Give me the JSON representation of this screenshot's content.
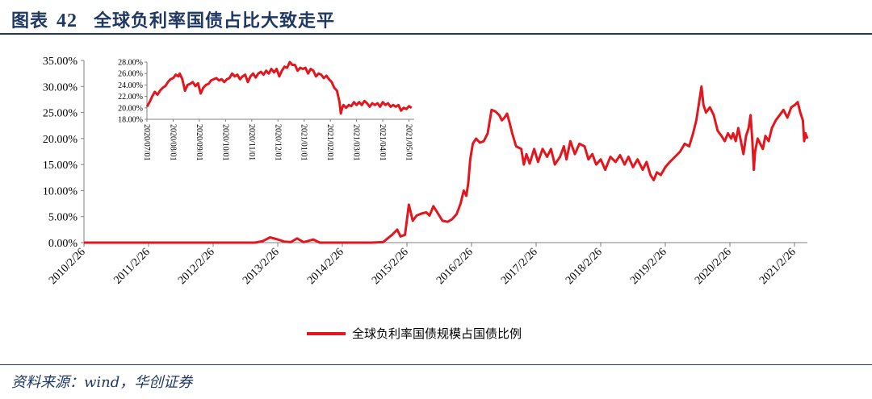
{
  "title": {
    "label": "图表",
    "number": "42",
    "text": "全球负利率国债占比大致走平"
  },
  "source": "资料来源：wind，华创证券",
  "colors": {
    "series": "#e3161e",
    "axis": "#808080",
    "title": "#1f3864"
  },
  "chart_data": [
    {
      "type": "line",
      "series": [
        {
          "name": "全球负利率国债规模占国债比例"
        }
      ],
      "legend_position": "bottom-center",
      "grid": false,
      "x_ticks": [
        "2010/2/26",
        "2011/2/26",
        "2012/2/26",
        "2013/2/26",
        "2014/2/26",
        "2015/2/26",
        "2016/2/26",
        "2017/2/26",
        "2018/2/26",
        "2019/2/26",
        "2020/2/26",
        "2021/2/26"
      ],
      "y_ticks": [
        "0.00%",
        "5.00%",
        "10.00%",
        "15.00%",
        "20.00%",
        "25.00%",
        "30.00%",
        "35.00%"
      ],
      "ylim": [
        0,
        35
      ],
      "xlim_years": [
        2010.15,
        2021.35
      ],
      "points": [
        [
          2010.15,
          0
        ],
        [
          2012.3,
          0
        ],
        [
          2012.8,
          0
        ],
        [
          2012.92,
          0.3
        ],
        [
          2013.03,
          1.0
        ],
        [
          2013.15,
          0.6
        ],
        [
          2013.25,
          0.2
        ],
        [
          2013.35,
          0.1
        ],
        [
          2013.45,
          0.8
        ],
        [
          2013.55,
          0.1
        ],
        [
          2013.7,
          0.6
        ],
        [
          2013.8,
          0.0
        ],
        [
          2014.6,
          0
        ],
        [
          2014.78,
          0.1
        ],
        [
          2014.92,
          1.5
        ],
        [
          2015.0,
          2.5
        ],
        [
          2015.05,
          1.2
        ],
        [
          2015.12,
          1.5
        ],
        [
          2015.18,
          7.3
        ],
        [
          2015.24,
          4.2
        ],
        [
          2015.3,
          5.2
        ],
        [
          2015.38,
          5.6
        ],
        [
          2015.45,
          5.8
        ],
        [
          2015.5,
          5.2
        ],
        [
          2015.56,
          7.0
        ],
        [
          2015.62,
          5.8
        ],
        [
          2015.7,
          4.2
        ],
        [
          2015.78,
          4.0
        ],
        [
          2015.85,
          4.5
        ],
        [
          2015.92,
          5.5
        ],
        [
          2015.98,
          7.5
        ],
        [
          2016.03,
          10.0
        ],
        [
          2016.07,
          9.0
        ],
        [
          2016.1,
          11.5
        ],
        [
          2016.13,
          16.0
        ],
        [
          2016.17,
          19.0
        ],
        [
          2016.22,
          20.0
        ],
        [
          2016.28,
          19.2
        ],
        [
          2016.34,
          19.5
        ],
        [
          2016.4,
          21.0
        ],
        [
          2016.46,
          25.5
        ],
        [
          2016.52,
          25.2
        ],
        [
          2016.58,
          24.5
        ],
        [
          2016.62,
          23.5
        ],
        [
          2016.66,
          24.0
        ],
        [
          2016.7,
          24.8
        ],
        [
          2016.74,
          23.0
        ],
        [
          2016.78,
          21.0
        ],
        [
          2016.84,
          18.5
        ],
        [
          2016.92,
          18.0
        ],
        [
          2016.96,
          15.0
        ],
        [
          2017.0,
          17.0
        ],
        [
          2017.05,
          15.2
        ],
        [
          2017.12,
          18.0
        ],
        [
          2017.18,
          15.5
        ],
        [
          2017.25,
          18.0
        ],
        [
          2017.32,
          16.5
        ],
        [
          2017.38,
          18.0
        ],
        [
          2017.44,
          15.0
        ],
        [
          2017.52,
          16.5
        ],
        [
          2017.58,
          18.5
        ],
        [
          2017.62,
          16.0
        ],
        [
          2017.68,
          19.5
        ],
        [
          2017.75,
          17.0
        ],
        [
          2017.82,
          19.0
        ],
        [
          2017.9,
          18.5
        ],
        [
          2017.96,
          16.0
        ],
        [
          2018.02,
          17.0
        ],
        [
          2018.08,
          15.0
        ],
        [
          2018.15,
          16.0
        ],
        [
          2018.22,
          14.0
        ],
        [
          2018.3,
          16.5
        ],
        [
          2018.38,
          15.5
        ],
        [
          2018.45,
          16.8
        ],
        [
          2018.52,
          15.0
        ],
        [
          2018.58,
          16.5
        ],
        [
          2018.65,
          14.5
        ],
        [
          2018.72,
          16.0
        ],
        [
          2018.8,
          14.0
        ],
        [
          2018.86,
          15.5
        ],
        [
          2018.92,
          13.0
        ],
        [
          2018.97,
          12.0
        ],
        [
          2019.02,
          13.5
        ],
        [
          2019.08,
          13.0
        ],
        [
          2019.15,
          14.5
        ],
        [
          2019.22,
          15.5
        ],
        [
          2019.3,
          16.5
        ],
        [
          2019.38,
          17.5
        ],
        [
          2019.45,
          19.0
        ],
        [
          2019.52,
          18.5
        ],
        [
          2019.58,
          21.0
        ],
        [
          2019.63,
          23.5
        ],
        [
          2019.68,
          27.5
        ],
        [
          2019.71,
          30.0
        ],
        [
          2019.74,
          26.5
        ],
        [
          2019.78,
          25.0
        ],
        [
          2019.84,
          26.0
        ],
        [
          2019.9,
          24.5
        ],
        [
          2019.96,
          21.5
        ],
        [
          2020.02,
          20.5
        ],
        [
          2020.07,
          19.5
        ],
        [
          2020.12,
          21.0
        ],
        [
          2020.17,
          20.0
        ],
        [
          2020.2,
          21.0
        ],
        [
          2020.24,
          19.5
        ],
        [
          2020.28,
          22.0
        ],
        [
          2020.32,
          19.5
        ],
        [
          2020.36,
          17.0
        ],
        [
          2020.4,
          20.5
        ],
        [
          2020.44,
          22.0
        ],
        [
          2020.47,
          24.5
        ],
        [
          2020.5,
          19.0
        ],
        [
          2020.52,
          14.0
        ],
        [
          2020.54,
          17.5
        ],
        [
          2020.58,
          20.0
        ],
        [
          2020.62,
          19.0
        ],
        [
          2020.66,
          18.0
        ],
        [
          2020.7,
          20.5
        ],
        [
          2020.75,
          19.5
        ],
        [
          2020.8,
          22.0
        ],
        [
          2020.86,
          23.5
        ],
        [
          2020.92,
          24.5
        ],
        [
          2020.98,
          25.5
        ],
        [
          2021.04,
          24.0
        ],
        [
          2021.1,
          26.0
        ],
        [
          2021.16,
          26.5
        ],
        [
          2021.2,
          27.0
        ],
        [
          2021.24,
          25.0
        ],
        [
          2021.28,
          23.5
        ],
        [
          2021.3,
          19.5
        ],
        [
          2021.32,
          21.0
        ],
        [
          2021.35,
          20.0
        ]
      ]
    },
    {
      "type": "line",
      "inset": true,
      "x_ticks": [
        "2020/07/01",
        "2020/08/01",
        "2020/09/01",
        "2020/10/01",
        "2020/11/01",
        "2020/12/01",
        "2021/01/01",
        "2021/02/01",
        "2021/03/01",
        "2021/04/01",
        "2021/05/01"
      ],
      "y_ticks": [
        "18.00%",
        "20.00%",
        "22.00%",
        "24.00%",
        "26.00%",
        "28.00%"
      ],
      "ylim": [
        18,
        28
      ],
      "xlim_months": [
        0,
        10.2
      ],
      "points": [
        [
          0.0,
          20.2
        ],
        [
          0.1,
          21.0
        ],
        [
          0.2,
          22.0
        ],
        [
          0.3,
          22.8
        ],
        [
          0.4,
          22.3
        ],
        [
          0.5,
          23.0
        ],
        [
          0.6,
          23.5
        ],
        [
          0.7,
          23.8
        ],
        [
          0.8,
          24.5
        ],
        [
          0.9,
          25.0
        ],
        [
          1.0,
          25.2
        ],
        [
          1.1,
          25.8
        ],
        [
          1.2,
          25.5
        ],
        [
          1.25,
          26.0
        ],
        [
          1.35,
          25.0
        ],
        [
          1.45,
          23.0
        ],
        [
          1.55,
          24.0
        ],
        [
          1.65,
          24.2
        ],
        [
          1.75,
          24.5
        ],
        [
          1.85,
          23.8
        ],
        [
          1.95,
          24.3
        ],
        [
          2.05,
          22.5
        ],
        [
          2.15,
          23.5
        ],
        [
          2.25,
          24.0
        ],
        [
          2.35,
          24.2
        ],
        [
          2.45,
          24.8
        ],
        [
          2.55,
          25.0
        ],
        [
          2.65,
          25.2
        ],
        [
          2.75,
          24.8
        ],
        [
          2.85,
          25.0
        ],
        [
          2.95,
          24.5
        ],
        [
          3.05,
          25.0
        ],
        [
          3.15,
          25.2
        ],
        [
          3.25,
          26.0
        ],
        [
          3.35,
          25.5
        ],
        [
          3.45,
          25.8
        ],
        [
          3.55,
          25.0
        ],
        [
          3.65,
          25.5
        ],
        [
          3.75,
          25.8
        ],
        [
          3.85,
          24.5
        ],
        [
          3.95,
          25.5
        ],
        [
          4.05,
          26.0
        ],
        [
          4.15,
          25.3
        ],
        [
          4.25,
          26.0
        ],
        [
          4.35,
          26.3
        ],
        [
          4.45,
          25.8
        ],
        [
          4.55,
          26.5
        ],
        [
          4.65,
          26.0
        ],
        [
          4.75,
          26.8
        ],
        [
          4.85,
          26.2
        ],
        [
          4.95,
          26.8
        ],
        [
          5.05,
          25.5
        ],
        [
          5.15,
          26.5
        ],
        [
          5.25,
          27.2
        ],
        [
          5.35,
          27.0
        ],
        [
          5.45,
          28.0
        ],
        [
          5.55,
          27.5
        ],
        [
          5.65,
          27.5
        ],
        [
          5.75,
          26.5
        ],
        [
          5.85,
          27.0
        ],
        [
          5.95,
          26.8
        ],
        [
          6.05,
          27.0
        ],
        [
          6.15,
          26.0
        ],
        [
          6.25,
          26.8
        ],
        [
          6.35,
          26.5
        ],
        [
          6.45,
          25.5
        ],
        [
          6.55,
          26.0
        ],
        [
          6.65,
          25.8
        ],
        [
          6.75,
          25.2
        ],
        [
          6.85,
          25.6
        ],
        [
          6.95,
          25.0
        ],
        [
          7.05,
          24.5
        ],
        [
          7.15,
          23.5
        ],
        [
          7.25,
          23.0
        ],
        [
          7.3,
          22.0
        ],
        [
          7.35,
          21.0
        ],
        [
          7.4,
          19.0
        ],
        [
          7.45,
          20.0
        ],
        [
          7.5,
          20.5
        ],
        [
          7.6,
          20.0
        ],
        [
          7.7,
          20.5
        ],
        [
          7.8,
          20.3
        ],
        [
          7.9,
          21.0
        ],
        [
          8.0,
          20.5
        ],
        [
          8.1,
          21.0
        ],
        [
          8.2,
          20.5
        ],
        [
          8.3,
          21.2
        ],
        [
          8.4,
          20.8
        ],
        [
          8.5,
          20.2
        ],
        [
          8.6,
          20.8
        ],
        [
          8.7,
          20.5
        ],
        [
          8.8,
          20.8
        ],
        [
          8.9,
          20.2
        ],
        [
          9.0,
          21.0
        ],
        [
          9.1,
          20.5
        ],
        [
          9.2,
          20.8
        ],
        [
          9.3,
          20.2
        ],
        [
          9.4,
          20.5
        ],
        [
          9.5,
          20.2
        ],
        [
          9.6,
          20.5
        ],
        [
          9.7,
          19.5
        ],
        [
          9.8,
          20.0
        ],
        [
          9.9,
          19.8
        ],
        [
          10.0,
          20.3
        ],
        [
          10.1,
          20.0
        ]
      ]
    }
  ]
}
